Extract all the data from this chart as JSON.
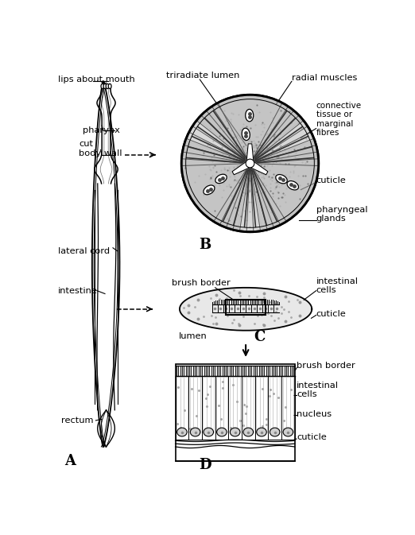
{
  "bg_color": "#ffffff",
  "line_color": "#000000",
  "label_A": "A",
  "label_B": "B",
  "label_C": "C",
  "label_D": "D",
  "labels": {
    "lips_about_mouth": "lips about mouth",
    "pharynx": "pharynx",
    "cut_body_wall": "cut\nbody wall",
    "lateral_cord": "lateral cord",
    "intestine": "intestine",
    "rectum": "rectum",
    "triradiate_lumen": "triradiate lumen",
    "radial_muscles": "radial muscles",
    "connective_tissue": "connective\ntissue or\nmarginal\nfibres",
    "cuticle_B": "cuticle",
    "pharyngeal_glands": "pharyngeal\nglands",
    "brush_border_C": "brush border",
    "intestinal_cells_C": "intestinal\ncells",
    "cuticle_C": "cuticle",
    "lumen": "lumen",
    "brush_border_D": "brush border",
    "intestinal_cells_D": "intestinal\ncells",
    "nucleus": "nucleus",
    "cuticle_D": "cuticle"
  }
}
